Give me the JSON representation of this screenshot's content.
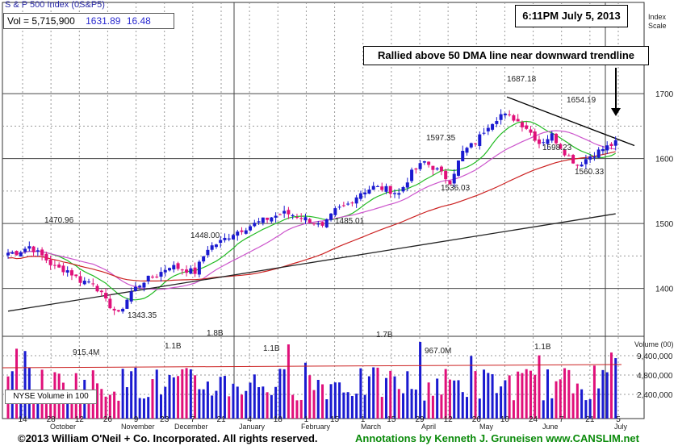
{
  "header": {
    "title": "S & P 500 Index",
    "symbol": "(0S&P5)",
    "vol_label": "Vol = 5,715,900",
    "price": "1631.89",
    "change": "16.48"
  },
  "timestamp": "6:11PM July 5, 2013",
  "annotation": "Rallied above 50 DMA line near downward trendline",
  "nyse_label": "NYSE Volume in 100",
  "footer": {
    "copyright": "©2013 William O'Neil + Co. Incorporated. All rights reserved.",
    "annotations": "Annotations by Kenneth J. Gruneisen www.CANSLIM.net"
  },
  "colors": {
    "up_candle": "#1a1ad0",
    "down_candle": "#e0107a",
    "ma10": "#22bb22",
    "ma21": "#cc55cc",
    "ma50": "#cc2222",
    "ma200": "#222222",
    "vol_avg": "#cc2222",
    "axis_text": "#222222"
  },
  "chart_data": {
    "type": "candlestick",
    "price_axis": {
      "title": "Index Scale",
      "ticks": [
        "1700",
        "1600",
        "1500",
        "1400"
      ],
      "ylim": [
        1325,
        1730
      ]
    },
    "volume_axis": {
      "title": "Volume (00)",
      "ticks": [
        "9,400,000",
        "4,800,000",
        "2,400,000"
      ]
    },
    "x_ticks": [
      "14",
      "28",
      "12",
      "26",
      "9",
      "23",
      "7",
      "21",
      "4",
      "18",
      "1",
      "15",
      "1",
      "15",
      "29",
      "12",
      "26",
      "10",
      "24",
      "7",
      "21",
      "5"
    ],
    "month_labels": [
      "October",
      "November",
      "December",
      "January",
      "February",
      "March",
      "April",
      "May",
      "June",
      "July"
    ],
    "price_labels": [
      "1470.96",
      "1448.00",
      "1343.35",
      "1485.01",
      "1597.35",
      "1536.03",
      "1687.18",
      "1654.19",
      "1598.23",
      "1560.33"
    ],
    "volume_labels": [
      "915.4M",
      "1.1B",
      "1.8B",
      "1.1B",
      "1.7B",
      "967.0M",
      "1.1B"
    ],
    "weekly_closes": [
      1455,
      1465,
      1450,
      1432,
      1428,
      1412,
      1410,
      1380,
      1360,
      1395,
      1412,
      1420,
      1435,
      1430,
      1425,
      1462,
      1472,
      1485,
      1494,
      1502,
      1510,
      1516,
      1512,
      1505,
      1493,
      1520,
      1530,
      1548,
      1556,
      1553,
      1546,
      1578,
      1595,
      1582,
      1565,
      1610,
      1625,
      1652,
      1668,
      1662,
      1648,
      1624,
      1636,
      1610,
      1590,
      1604,
      1615,
      1624
    ],
    "ma200_start_end": [
      1365,
      1515
    ],
    "trendline": [
      1695,
      1620
    ],
    "grid": true
  }
}
